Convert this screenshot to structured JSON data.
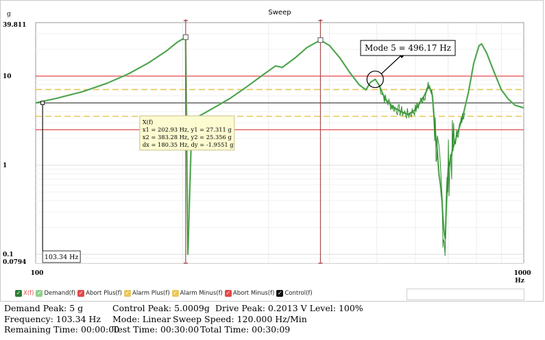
{
  "chart_data": {
    "type": "line",
    "title": "Sweep",
    "ylabel": "g",
    "xlabel": "Hz",
    "xscale": "log",
    "yscale": "log",
    "xlim": [
      100,
      1000
    ],
    "ylim": [
      0.0794,
      39.811
    ],
    "ytick_labels": [
      "39.811",
      "10",
      "1",
      "0.1",
      "0.0794"
    ],
    "xtick_labels": [
      "100",
      "1000"
    ],
    "grid": true,
    "colors": {
      "control": "#2e8b2e",
      "demand": "#8fd08f",
      "abort": "#e34848",
      "alarm": "#e8c85a",
      "demand_line": "#444444",
      "cursor": "#a84a4a"
    },
    "levels": {
      "demand": 5,
      "abort_plus": 10,
      "abort_minus": 2.5,
      "alarm_plus": 7.07,
      "alarm_minus": 3.54
    },
    "control_series": [
      [
        100,
        5.0
      ],
      [
        110,
        5.6
      ],
      [
        125,
        6.7
      ],
      [
        140,
        8.3
      ],
      [
        155,
        10.6
      ],
      [
        170,
        14.0
      ],
      [
        185,
        19.0
      ],
      [
        195,
        24.0
      ],
      [
        202.93,
        27.311
      ],
      [
        205,
        0.1
      ],
      [
        209,
        3.2
      ],
      [
        230,
        4.3
      ],
      [
        250,
        5.6
      ],
      [
        270,
        7.5
      ],
      [
        290,
        10.0
      ],
      [
        310,
        13.0
      ],
      [
        320,
        12.5
      ],
      [
        340,
        16.0
      ],
      [
        360,
        21.0
      ],
      [
        383.28,
        25.356
      ],
      [
        400,
        22.0
      ],
      [
        420,
        16.0
      ],
      [
        440,
        11.0
      ],
      [
        460,
        8.0
      ],
      [
        475,
        7.0
      ],
      [
        485,
        8.5
      ],
      [
        496.17,
        9.2
      ],
      [
        505,
        8.0
      ],
      [
        520,
        5.5
      ],
      [
        540,
        4.5
      ],
      [
        560,
        4.0
      ],
      [
        580,
        3.7
      ],
      [
        600,
        4.2
      ],
      [
        625,
        6.0
      ],
      [
        640,
        7.8
      ],
      [
        650,
        6.0
      ],
      [
        658,
        2.5
      ],
      [
        665,
        1.5
      ],
      [
        670,
        0.8
      ],
      [
        675,
        0.6
      ],
      [
        680,
        0.4
      ],
      [
        685,
        0.2
      ],
      [
        690,
        0.15
      ],
      [
        695,
        0.4
      ],
      [
        700,
        0.9
      ],
      [
        715,
        1.5
      ],
      [
        730,
        2.2
      ],
      [
        750,
        3.5
      ],
      [
        770,
        6.5
      ],
      [
        790,
        14.0
      ],
      [
        810,
        22.0
      ],
      [
        820,
        23.0
      ],
      [
        840,
        18.0
      ],
      [
        870,
        11.0
      ],
      [
        900,
        7.0
      ],
      [
        930,
        5.5
      ],
      [
        960,
        4.7
      ],
      [
        1000,
        4.4
      ]
    ],
    "legend": [
      {
        "label": "X(f)",
        "color": "#e34848",
        "box": "#2e7d32"
      },
      {
        "label": "Demand(f)",
        "color": "#222",
        "box": "#8fd08f"
      },
      {
        "label": "Abort Plus(f)",
        "color": "#222",
        "box": "#e34848"
      },
      {
        "label": "Alarm Plus(f)",
        "color": "#222",
        "box": "#e8c85a"
      },
      {
        "label": "Alarm Minus(f)",
        "color": "#222",
        "box": "#e8c85a"
      },
      {
        "label": "Abort Minus(f)",
        "color": "#222",
        "box": "#e34848"
      },
      {
        "label": "Control(f)",
        "color": "#222",
        "box": "#111111"
      }
    ],
    "annotations": {
      "mode_label": "Mode 5 = 496.17 Hz",
      "mode_x": 496.17,
      "mode_y": 9.2,
      "cursor1_x": 202.93,
      "cursor1_y": 27.311,
      "cursor2_x": 383.28,
      "cursor2_y": 25.356,
      "marker_x": 103.34,
      "marker_y": 5.0,
      "frequency_label": "103.34 Hz",
      "tooltip": [
        "X(f)",
        "x1 = 202.93 Hz, y1 = 27.311 g",
        "x2 = 383.28 Hz, y2 = 25.356 g",
        "dx = 180.35 Hz, dy = -1.9551 g"
      ]
    }
  },
  "status": {
    "row1": {
      "demand_peak": "Demand Peak: 5 g",
      "control_peak": "Control Peak: 5.0009g",
      "drive_peak": "Drive Peak: 0.2013 V Level: 100%"
    },
    "row2": {
      "frequency": "Frequency: 103.34 Hz",
      "mode": "Mode: Linear",
      "sweep_speed": "Sweep Speed: 120.000 Hz/Min"
    },
    "row3": {
      "remaining": "Remaining Time: 00:00:00",
      "test_time": "Test Time: 00:30:00",
      "total_time": "Total Time: 00:30:09"
    }
  }
}
